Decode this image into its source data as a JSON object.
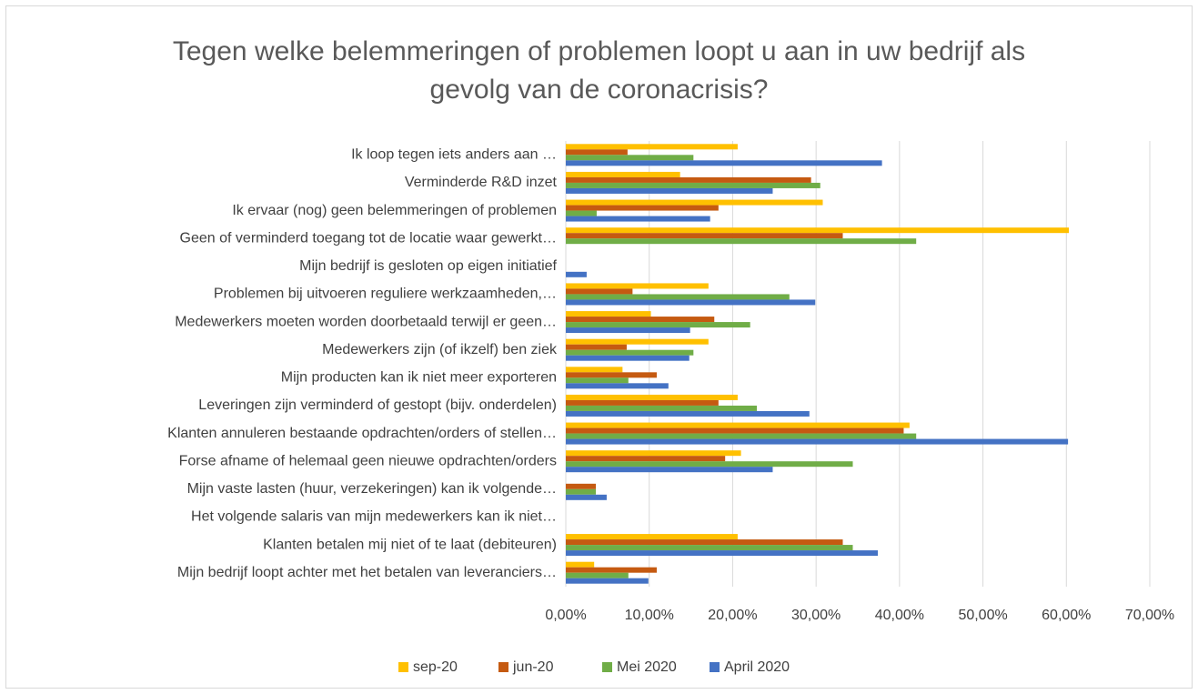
{
  "chart_data": {
    "type": "bar",
    "orientation": "horizontal",
    "title": "Tegen welke belemmeringen of problemen loopt u aan in uw bedrijf als gevolg van de coronacrisis?",
    "categories": [
      "Ik loop tegen iets anders aan …",
      "Verminderde R&D inzet",
      "Ik ervaar (nog) geen belemmeringen of problemen",
      "Geen of verminderd toegang tot de locatie waar gewerkt…",
      "Mijn bedrijf is gesloten op eigen initiatief",
      "Problemen bij uitvoeren reguliere werkzaamheden,…",
      "Medewerkers moeten worden doorbetaald terwijl er geen…",
      "Medewerkers zijn (of ikzelf) ben ziek",
      "Mijn producten kan ik niet meer exporteren",
      "Leveringen zijn verminderd of gestopt (bijv. onderdelen)",
      "Klanten annuleren bestaande opdrachten/orders of stellen…",
      "Forse afname of helemaal geen nieuwe opdrachten/orders",
      "Mijn vaste lasten (huur, verzekeringen) kan ik volgende…",
      "Het volgende salaris van mijn medewerkers kan ik niet…",
      "Klanten betalen mij niet of te laat (debiteuren)",
      "Mijn bedrijf loopt achter met het betalen van leveranciers…"
    ],
    "series": [
      {
        "name": "sep-20",
        "color": "#ffc000",
        "values": [
          20.6,
          13.7,
          30.8,
          60.3,
          0,
          17.1,
          10.2,
          17.1,
          6.8,
          20.6,
          41.2,
          21.0,
          0,
          0,
          20.6,
          3.4
        ]
      },
      {
        "name": "jun-20",
        "color": "#c55a11",
        "values": [
          7.4,
          29.4,
          18.3,
          33.2,
          0,
          8.0,
          17.8,
          7.3,
          10.9,
          18.3,
          40.5,
          19.1,
          3.6,
          0,
          33.2,
          10.9
        ]
      },
      {
        "name": "Mei 2020",
        "color": "#70ad47",
        "values": [
          15.3,
          30.5,
          3.7,
          42.0,
          0,
          26.8,
          22.1,
          15.3,
          7.5,
          22.9,
          42.0,
          34.4,
          3.6,
          0,
          34.4,
          7.5
        ]
      },
      {
        "name": "April 2020",
        "color": "#4472c4",
        "values": [
          37.9,
          24.8,
          17.3,
          0,
          2.5,
          29.9,
          14.9,
          14.8,
          12.3,
          29.2,
          60.2,
          24.8,
          4.9,
          0,
          37.4,
          9.9
        ]
      }
    ],
    "xlim": [
      0,
      70
    ],
    "xticks": [
      {
        "value": 0,
        "label": "0,00%"
      },
      {
        "value": 10,
        "label": "10,00%"
      },
      {
        "value": 20,
        "label": "20,00%"
      },
      {
        "value": 30,
        "label": "30,00%"
      },
      {
        "value": 40,
        "label": "40,00%"
      },
      {
        "value": 50,
        "label": "50,00%"
      },
      {
        "value": 60,
        "label": "60,00%"
      },
      {
        "value": 70,
        "label": "70,00%"
      }
    ],
    "grid": true,
    "legend": "bottom"
  }
}
